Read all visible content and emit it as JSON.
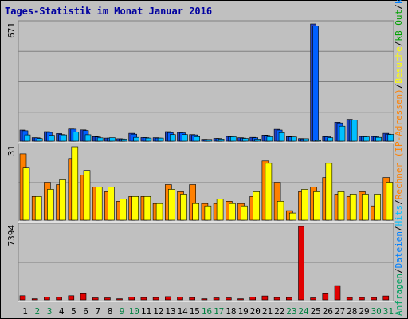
{
  "page": {
    "title": "Tages-Statistik im Monat Januar 2016",
    "legend_right": [
      {
        "text": "Anfragen",
        "color": "#00a060"
      },
      {
        "text": "/",
        "color": "#000000"
      },
      {
        "text": "Dateien",
        "color": "#0080ff"
      },
      {
        "text": "/",
        "color": "#000000"
      },
      {
        "text": "Hits",
        "color": "#00c0ff"
      },
      {
        "text": "/",
        "color": "#000000"
      },
      {
        "text": "Rechner (IP-Adressen)",
        "color": "#ff8000"
      },
      {
        "text": "/",
        "color": "#000000"
      },
      {
        "text": "Besuche",
        "color": "#ffff00"
      },
      {
        "text": "/",
        "color": "#000000"
      },
      {
        "text": "kB Out",
        "color": "#00a000"
      },
      {
        "text": "/",
        "color": "#000000"
      },
      {
        "text": "kB In",
        "color": "#0080ff"
      },
      {
        "text": "/",
        "color": "#000000"
      },
      {
        "text": "kB F",
        "color": "#ff0000"
      }
    ]
  },
  "chart_data": {
    "type": "bar",
    "x": [
      "1",
      "2",
      "3",
      "4",
      "5",
      "6",
      "7",
      "8",
      "9",
      "10",
      "11",
      "12",
      "13",
      "14",
      "15",
      "16",
      "17",
      "18",
      "19",
      "20",
      "21",
      "22",
      "23",
      "24",
      "25",
      "26",
      "27",
      "28",
      "29",
      "30",
      "31"
    ],
    "weekend_days": [
      "2",
      "3",
      "9",
      "10",
      "16",
      "17",
      "23",
      "24",
      "30",
      "31"
    ],
    "colors": {
      "weekday_label": "#000000",
      "weekend_label": "#008040"
    },
    "panels": [
      {
        "name": "top",
        "max_label": "671",
        "ymax": 671,
        "series": [
          {
            "name": "Hits",
            "color": "#00c0ff",
            "values": [
              36,
              15,
              34,
              36,
              52,
              37,
              19,
              20,
              12,
              22,
              18,
              18,
              38,
              38,
              26,
              10,
              12,
              25,
              16,
              12,
              25,
              49,
              24,
              14,
              3,
              20,
              86,
              120,
              25,
              22,
              39
            ]
          },
          {
            "name": "Dateien",
            "color": "#0060ff",
            "values": [
              60,
              19,
              50,
              38,
              69,
              61,
              24,
              18,
              13,
              40,
              20,
              18,
              49,
              48,
              36,
              10,
              15,
              25,
              18,
              20,
              33,
              64,
              24,
              13,
              660,
              25,
              104,
              122,
              26,
              25,
              40
            ]
          },
          {
            "name": "Anfragen",
            "color": "#2040c0",
            "values": [
              64,
              20,
              55,
              44,
              70,
              65,
              26,
              18,
              14,
              45,
              21,
              20,
              55,
              50,
              38,
              11,
              16,
              27,
              20,
              22,
              35,
              68,
              26,
              15,
              671,
              26,
              108,
              125,
              27,
              27,
              45
            ]
          }
        ]
      },
      {
        "name": "middle",
        "max_label": "31",
        "ymax": 31,
        "series": [
          {
            "name": "Besuche",
            "color": "#ffff00",
            "values": [
              22,
              10,
              13,
              17,
              31,
              21,
              14,
              14,
              9,
              10,
              10,
              7,
              13,
              11,
              7,
              6,
              9,
              7,
              6,
              12,
              24,
              8,
              3,
              13,
              12,
              24,
              12,
              11,
              11,
              11,
              16
            ]
          },
          {
            "name": "Rechner (IP-Adressen)",
            "color": "#ff8000",
            "values": [
              28,
              10,
              16,
              15,
              26,
              19,
              14,
              12,
              8,
              10,
              10,
              7,
              15,
              12,
              15,
              7,
              7,
              8,
              7,
              10,
              25,
              16,
              4,
              12,
              14,
              18,
              11,
              10,
              12,
              6,
              18
            ]
          }
        ]
      },
      {
        "name": "bottom",
        "max_label": "7394",
        "ymax": 7394,
        "series": [
          {
            "name": "kB F",
            "color": "#e00000",
            "values": [
              420,
              110,
              280,
              260,
              420,
              620,
              200,
              200,
              110,
              300,
              230,
              230,
              330,
              290,
              230,
              110,
              200,
              200,
              110,
              300,
              390,
              230,
              230,
              7394,
              200,
              620,
              1440,
              230,
              230,
              230,
              390
            ]
          }
        ]
      }
    ]
  }
}
